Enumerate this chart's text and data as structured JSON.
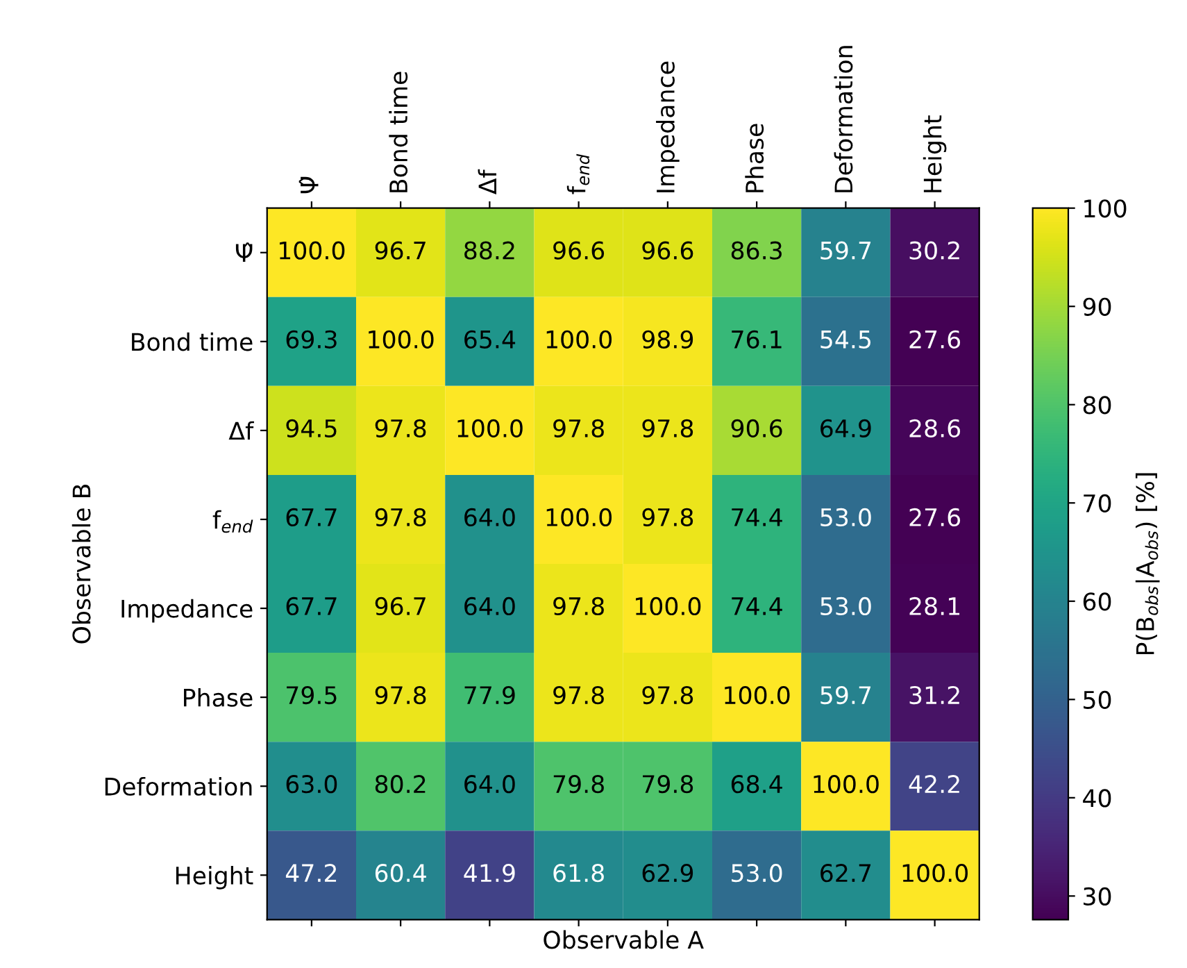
{
  "chart_data": {
    "type": "heatmap",
    "xlabel": "Observable A",
    "ylabel": "Observable B",
    "clabel": "P(B$_{obs}$|A$_{obs}$) [%]",
    "categories": [
      "Ψ̂",
      "Bond time",
      "Δf",
      "f$_{end}$",
      "Impedance",
      "Phase",
      "Deformation",
      "Height"
    ],
    "y_categories": [
      "Ψ̂",
      "Bond time",
      "Δf",
      "f$_{end}$",
      "Impedance",
      "Phase",
      "Deformation",
      "Height"
    ],
    "cells": [
      [
        100.0,
        96.7,
        88.2,
        96.6,
        96.6,
        86.3,
        59.7,
        30.2
      ],
      [
        69.3,
        100.0,
        65.4,
        100.0,
        98.9,
        76.1,
        54.5,
        27.6
      ],
      [
        94.5,
        97.8,
        100.0,
        97.8,
        97.8,
        90.6,
        64.9,
        28.6
      ],
      [
        67.7,
        97.8,
        64.0,
        100.0,
        97.8,
        74.4,
        53.0,
        27.6
      ],
      [
        67.7,
        96.7,
        64.0,
        97.8,
        100.0,
        74.4,
        53.0,
        28.1
      ],
      [
        79.5,
        97.8,
        77.9,
        97.8,
        97.8,
        100.0,
        59.7,
        31.2
      ],
      [
        63.0,
        80.2,
        64.0,
        79.8,
        79.8,
        68.4,
        100.0,
        42.2
      ],
      [
        47.2,
        60.4,
        41.9,
        61.8,
        62.9,
        53.0,
        62.7,
        100.0
      ]
    ],
    "cell_labels": [
      [
        "100.0",
        "96.7",
        "88.2",
        "96.6",
        "96.6",
        "86.3",
        "59.7",
        "30.2"
      ],
      [
        "69.3",
        "100.0",
        "65.4",
        "100.0",
        "98.9",
        "76.1",
        "54.5",
        "27.6"
      ],
      [
        "94.5",
        "97.8",
        "100.0",
        "97.8",
        "97.8",
        "90.6",
        "64.9",
        "28.6"
      ],
      [
        "67.7",
        "97.8",
        "64.0",
        "100.0",
        "97.8",
        "74.4",
        "53.0",
        "27.6"
      ],
      [
        "67.7",
        "96.7",
        "64.0",
        "97.8",
        "100.0",
        "74.4",
        "53.0",
        "28.1"
      ],
      [
        "79.5",
        "97.8",
        "77.9",
        "97.8",
        "97.8",
        "100.0",
        "59.7",
        "31.2"
      ],
      [
        "63.0",
        "80.2",
        "64.0",
        "79.8",
        "79.8",
        "68.4",
        "100.0",
        "42.2"
      ],
      [
        "47.2",
        "60.4",
        "41.9",
        "61.8",
        "62.9",
        "53.0",
        "62.7",
        "100.0"
      ]
    ],
    "clim": [
      27.6,
      100
    ],
    "cticks": [
      30,
      40,
      50,
      60,
      70,
      80,
      90,
      100
    ],
    "data_labels": true,
    "grid": false
  }
}
